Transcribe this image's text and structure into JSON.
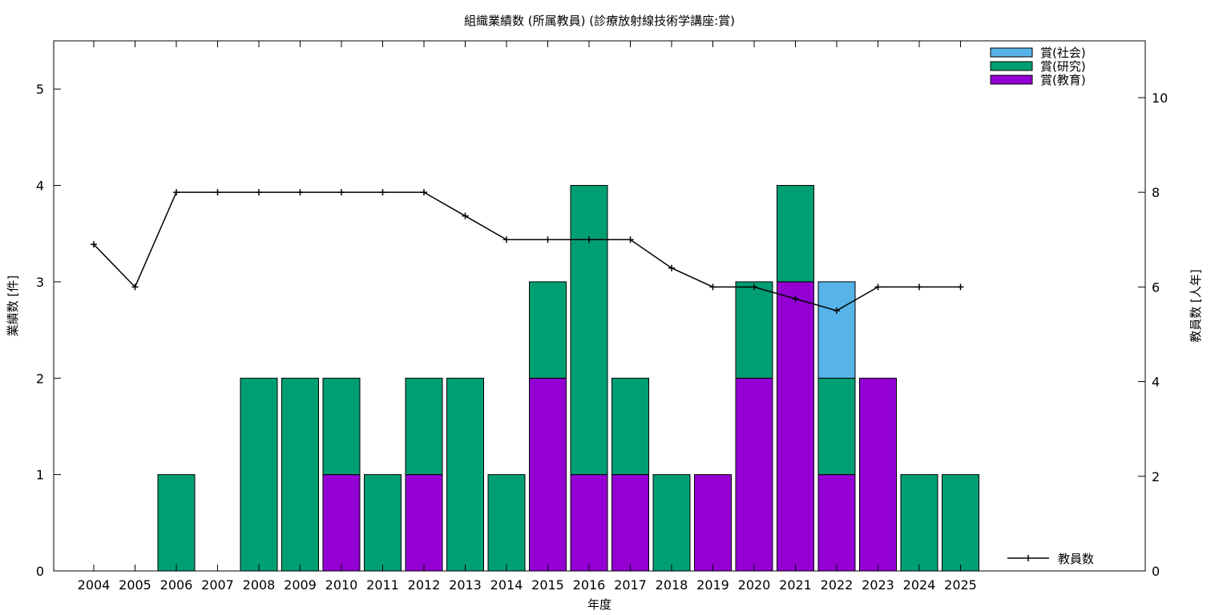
{
  "chart_data": {
    "type": "bar",
    "title": "組織業績数 (所属教員) (診療放射線技術学講座:賞)",
    "xlabel": "年度",
    "ylabel": "業績数 [件]",
    "y2label": "教員数 [人年]",
    "categories": [
      "2004",
      "2005",
      "2006",
      "2007",
      "2008",
      "2009",
      "2010",
      "2011",
      "2012",
      "2013",
      "2014",
      "2015",
      "2016",
      "2017",
      "2018",
      "2019",
      "2020",
      "2021",
      "2022",
      "2023",
      "2024",
      "2025"
    ],
    "ylim": [
      0,
      5.5
    ],
    "y2lim": [
      0,
      11.2
    ],
    "yticks": [
      0,
      1,
      2,
      3,
      4,
      5
    ],
    "y2ticks": [
      0,
      2,
      4,
      6,
      8,
      10
    ],
    "stacked": true,
    "series": [
      {
        "name": "賞(教育)",
        "color": "#9400d3",
        "values": [
          0,
          0,
          0,
          0,
          0,
          0,
          1,
          0,
          1,
          0,
          0,
          2,
          1,
          1,
          0,
          1,
          2,
          3,
          1,
          2,
          0,
          0
        ]
      },
      {
        "name": "賞(研究)",
        "color": "#009e73",
        "values": [
          0,
          0,
          1,
          0,
          2,
          2,
          1,
          1,
          1,
          2,
          1,
          1,
          3,
          1,
          1,
          0,
          1,
          1,
          1,
          0,
          1,
          1
        ]
      },
      {
        "name": "賞(社会)",
        "color": "#56b4e9",
        "values": [
          0,
          0,
          0,
          0,
          0,
          0,
          0,
          0,
          0,
          0,
          0,
          0,
          0,
          0,
          0,
          0,
          0,
          0,
          1,
          0,
          0,
          0
        ]
      }
    ],
    "line_series": {
      "name": "教員数",
      "axis": "y2",
      "color": "#000000",
      "values": [
        6.9,
        6.0,
        8.0,
        8.0,
        8.0,
        8.0,
        8.0,
        8.0,
        8.0,
        7.5,
        7.0,
        7.0,
        7.0,
        7.0,
        6.4,
        6.0,
        6.0,
        5.75,
        5.5,
        6.0,
        6.0,
        6.0
      ]
    },
    "legend_stack_order": [
      "賞(社会)",
      "賞(研究)",
      "賞(教育)"
    ],
    "legend_position": "top-right",
    "line_legend_position": "bottom-right",
    "grid": false
  }
}
